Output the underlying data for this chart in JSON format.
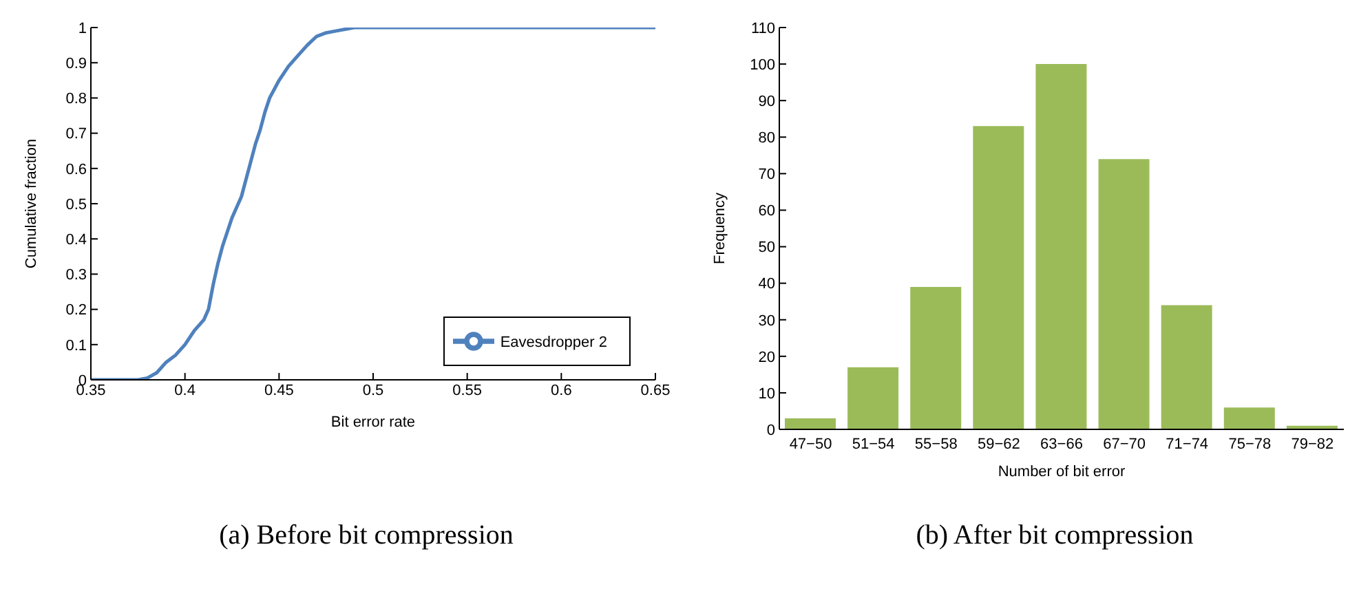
{
  "chart_data": [
    {
      "type": "line",
      "xlabel": "Bit error rate",
      "ylabel": "Cumulative fraction",
      "annotations": [
        "(a) Before bit compression"
      ],
      "series": [
        {
          "name": "Eavesdropper 2",
          "color": "#4f81bd",
          "x": [
            0.35,
            0.375,
            0.38,
            0.385,
            0.39,
            0.395,
            0.4,
            0.405,
            0.41,
            0.4125,
            0.415,
            0.4175,
            0.42,
            0.4225,
            0.425,
            0.43,
            0.4325,
            0.435,
            0.4375,
            0.44,
            0.4425,
            0.445,
            0.45,
            0.455,
            0.46,
            0.465,
            0.47,
            0.475,
            0.48,
            0.49,
            0.65
          ],
          "values": [
            0,
            0,
            0.005,
            0.02,
            0.05,
            0.07,
            0.1,
            0.14,
            0.17,
            0.2,
            0.27,
            0.33,
            0.38,
            0.42,
            0.46,
            0.52,
            0.57,
            0.62,
            0.67,
            0.71,
            0.76,
            0.8,
            0.85,
            0.89,
            0.92,
            0.95,
            0.975,
            0.985,
            0.99,
            1,
            1
          ]
        }
      ],
      "xlim": [
        0.35,
        0.65
      ],
      "xticks": [
        0.35,
        0.4,
        0.45,
        0.5,
        0.55,
        0.6,
        0.65
      ],
      "ylim": [
        0,
        1
      ],
      "yticks": [
        0,
        0.1,
        0.2,
        0.3,
        0.4,
        0.5,
        0.6,
        0.7,
        0.8,
        0.9,
        1
      ],
      "legend": "bottom right",
      "grid": false,
      "line_style": "solid"
    },
    {
      "type": "bar",
      "xlabel": "Number of bit error",
      "ylabel": "Frequency",
      "annotations": [
        "(b) After bit compression"
      ],
      "categories": [
        "47−50",
        "51−54",
        "55−58",
        "59−62",
        "63−66",
        "67−70",
        "71−74",
        "75−78",
        "79−82"
      ],
      "values": [
        3,
        17,
        39,
        83,
        100,
        74,
        34,
        6,
        1
      ],
      "color": "#9bbb59",
      "ylim": [
        0,
        110
      ],
      "yticks": [
        0,
        10,
        20,
        30,
        40,
        50,
        60,
        70,
        80,
        90,
        100,
        110
      ],
      "grid": false
    }
  ]
}
